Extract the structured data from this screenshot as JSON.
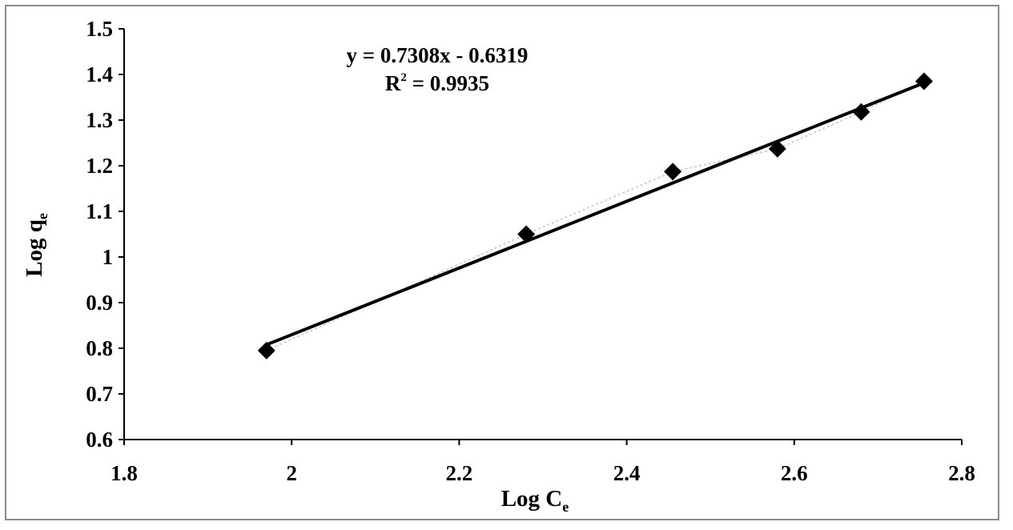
{
  "chart_data": {
    "type": "scatter",
    "xlabel": "Log C",
    "xlabel_sub": "e",
    "ylabel": "Log q",
    "ylabel_sub": "e",
    "xlim": [
      1.8,
      2.8
    ],
    "ylim": [
      0.6,
      1.5
    ],
    "xticks": [
      "1.8",
      "2",
      "2.2",
      "2.4",
      "2.6",
      "2.8"
    ],
    "yticks": [
      "0.6",
      "0.7",
      "0.8",
      "0.9",
      "1",
      "1.1",
      "1.2",
      "1.3",
      "1.4",
      "1.5"
    ],
    "grid": false,
    "series": [
      {
        "marker": "diamond",
        "color": "#000000",
        "x": [
          1.97,
          2.28,
          2.455,
          2.58,
          2.68,
          2.755
        ],
        "y": [
          0.795,
          1.05,
          1.187,
          1.237,
          1.318,
          1.385
        ]
      }
    ],
    "trendline": {
      "slope": 0.7308,
      "intercept": -0.6319,
      "x_range": [
        1.97,
        2.755
      ],
      "color": "#000000"
    },
    "annotations": {
      "equation": "y = 0.7308x - 0.6319",
      "r2_prefix": "R",
      "r2_sup": "2",
      "r2_value": " = 0.9935"
    }
  }
}
